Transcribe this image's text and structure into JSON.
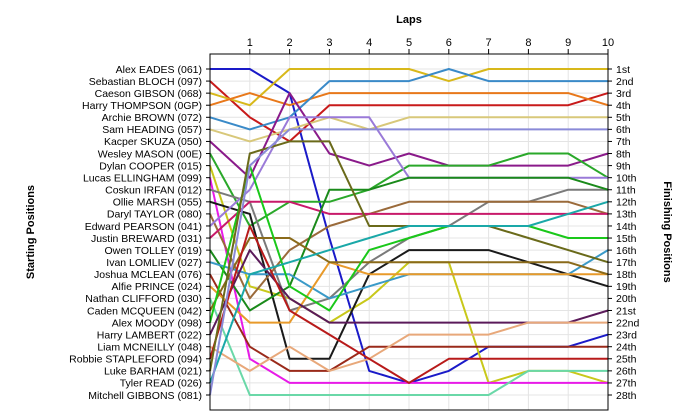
{
  "chart_data": {
    "type": "line",
    "title": "",
    "xlabel": "Laps",
    "ylabel_left": "Starting Positions",
    "ylabel_right": "Finishing Positions",
    "x": [
      0,
      1,
      2,
      3,
      4,
      5,
      6,
      7,
      8,
      9,
      10
    ],
    "x_tick_labels": [
      "1",
      "2",
      "3",
      "4",
      "5",
      "6",
      "7",
      "8",
      "9",
      "10"
    ],
    "y_axis": "position, 1 at top, 28 at bottom",
    "ylim": [
      1,
      28
    ],
    "grid": true,
    "finishing_labels": [
      "1st",
      "2nd",
      "3rd",
      "4th",
      "5th",
      "6th",
      "7th",
      "8th",
      "9th",
      "10th",
      "11th",
      "12th",
      "13th",
      "14th",
      "15th",
      "16th",
      "17th",
      "18th",
      "19th",
      "20th",
      "21st",
      "22nd",
      "23rd",
      "24th",
      "25th",
      "26th",
      "27th",
      "28th"
    ],
    "series": [
      {
        "name": "Alex EADES (061)",
        "color": "#1a1ac8",
        "values": [
          1,
          1,
          3,
          15,
          26,
          27,
          26,
          24,
          24,
          24,
          23
        ]
      },
      {
        "name": "Sebastian BLOCH (097)",
        "color": "#c81a1a",
        "values": [
          2,
          5,
          7,
          4,
          4,
          4,
          4,
          4,
          4,
          4,
          3
        ]
      },
      {
        "name": "Caeson GIBSON (068)",
        "color": "#d8b81a",
        "values": [
          3,
          4,
          1,
          1,
          1,
          1,
          2,
          1,
          1,
          1,
          1
        ]
      },
      {
        "name": "Harry THOMPSON (0GP)",
        "color": "#e8781a",
        "values": [
          4,
          3,
          4,
          3,
          3,
          3,
          3,
          3,
          3,
          3,
          4
        ]
      },
      {
        "name": "Archie BROWN (072)",
        "color": "#3a8ac8",
        "values": [
          5,
          6,
          5,
          2,
          2,
          2,
          1,
          2,
          2,
          2,
          2
        ]
      },
      {
        "name": "Sam HEADING (057)",
        "color": "#d8c87a",
        "values": [
          6,
          7,
          6,
          5,
          6,
          5,
          5,
          5,
          5,
          5,
          5
        ]
      },
      {
        "name": "Kacper SKUZA (050)",
        "color": "#8a1a8a",
        "values": [
          7,
          10,
          3,
          8,
          9,
          8,
          9,
          9,
          9,
          9,
          8
        ]
      },
      {
        "name": "Wesley MASON (00E)",
        "color": "#2aa82a",
        "values": [
          8,
          14,
          12,
          12,
          11,
          9,
          9,
          9,
          8,
          8,
          10
        ]
      },
      {
        "name": "Dylan COOPER (015)",
        "color": "#c8c81a",
        "values": [
          9,
          19,
          20,
          22,
          20,
          17,
          17,
          27,
          26,
          26,
          27
        ]
      },
      {
        "name": "Lucas ELLINGHAM (099)",
        "color": "#e81ae8",
        "values": [
          10,
          25,
          27,
          27,
          27,
          27,
          27,
          27,
          27,
          27,
          27
        ]
      },
      {
        "name": "Coskun IRFAN (012)",
        "color": "#7a7a7a",
        "values": [
          11,
          12,
          21,
          20,
          17,
          15,
          14,
          12,
          12,
          11,
          11
        ]
      },
      {
        "name": "Ollie MARSH (055)",
        "color": "#1a1a1a",
        "values": [
          12,
          13,
          25,
          25,
          18,
          16,
          16,
          16,
          17,
          18,
          19
        ]
      },
      {
        "name": "Daryl TAYLOR (080)",
        "color": "#9a6a3a",
        "values": [
          13,
          20,
          16,
          14,
          13,
          12,
          12,
          12,
          12,
          12,
          13
        ]
      },
      {
        "name": "Edward PEARSON (041)",
        "color": "#9a7ad8",
        "values": [
          14,
          11,
          5,
          5,
          5,
          10,
          10,
          10,
          10,
          10,
          10
        ]
      },
      {
        "name": "Justin BREWARD (031)",
        "color": "#c81a6a",
        "values": [
          15,
          12,
          12,
          13,
          13,
          13,
          13,
          13,
          13,
          13,
          13
        ]
      },
      {
        "name": "Owen TOLLEY (019)",
        "color": "#1a8a1a",
        "values": [
          16,
          21,
          19,
          11,
          11,
          10,
          10,
          10,
          10,
          10,
          11
        ]
      },
      {
        "name": "Ivan LOMLIEV (027)",
        "color": "#3a9ac8",
        "values": [
          17,
          18,
          18,
          20,
          19,
          18,
          18,
          18,
          18,
          18,
          16
        ]
      },
      {
        "name": "Joshua MCLEAN (076)",
        "color": "#9a2a1a",
        "values": [
          18,
          24,
          26,
          26,
          24,
          24,
          24,
          24,
          24,
          24,
          24
        ]
      },
      {
        "name": "Alfie PRINCE (024)",
        "color": "#e89a2a",
        "values": [
          19,
          22,
          22,
          17,
          18,
          18,
          18,
          18,
          18,
          18,
          18
        ]
      },
      {
        "name": "Nathan CLIFFORD (030)",
        "color": "#6ad8a8",
        "values": [
          20,
          28,
          28,
          28,
          28,
          28,
          28,
          28,
          26,
          26,
          26
        ]
      },
      {
        "name": "Caden MCQUEEN (042)",
        "color": "#8a6a1a",
        "values": [
          21,
          15,
          15,
          17,
          17,
          17,
          17,
          17,
          17,
          17,
          18
        ]
      },
      {
        "name": "Alex MOODY (098)",
        "color": "#1ac81a",
        "values": [
          22,
          9,
          19,
          21,
          16,
          15,
          14,
          14,
          14,
          15,
          15
        ]
      },
      {
        "name": "Harry LAMBERT (022)",
        "color": "#5a1a5a",
        "values": [
          23,
          16,
          20,
          22,
          22,
          22,
          22,
          22,
          22,
          22,
          21
        ]
      },
      {
        "name": "Liam MCNEILLY (048)",
        "color": "#e8a87a",
        "values": [
          24,
          26,
          24,
          26,
          25,
          23,
          23,
          23,
          22,
          22,
          22
        ]
      },
      {
        "name": "Robbie STAPLEFORD (094)",
        "color": "#b81a1a",
        "values": [
          25,
          14,
          21,
          23,
          25,
          27,
          25,
          25,
          25,
          25,
          25
        ]
      },
      {
        "name": "Luke BARHAM (021)",
        "color": "#6a6a1a",
        "values": [
          26,
          8,
          7,
          7,
          14,
          14,
          14,
          14,
          15,
          16,
          17
        ]
      },
      {
        "name": "Tyler READ (026)",
        "color": "#1aa8a8",
        "values": [
          27,
          18,
          17,
          16,
          15,
          14,
          14,
          14,
          14,
          13,
          12
        ]
      },
      {
        "name": "Mitchell GIBBONS (081)",
        "color": "#8a8ad8",
        "values": [
          28,
          9,
          6,
          6,
          6,
          6,
          6,
          6,
          6,
          6,
          6
        ]
      }
    ]
  }
}
